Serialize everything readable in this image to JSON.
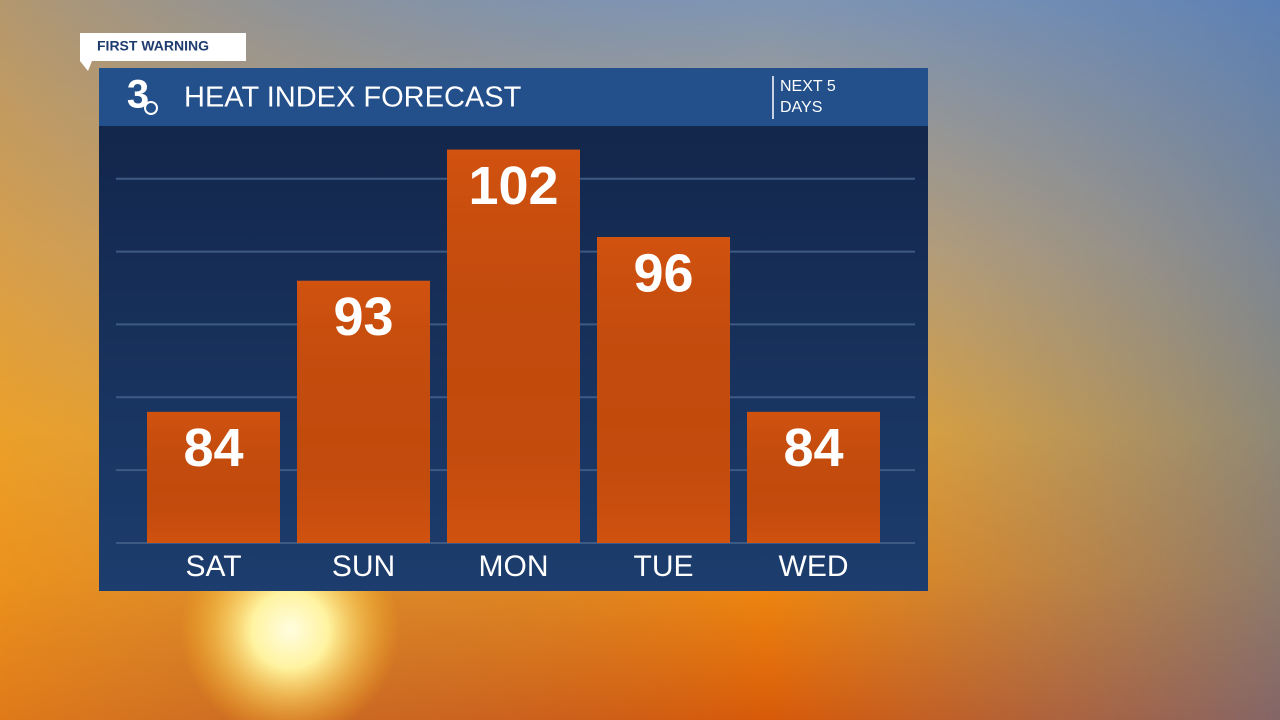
{
  "brand": "FIRST WARNING",
  "logo": "3",
  "chart_data": {
    "type": "bar",
    "title": "HEAT INDEX FORECAST",
    "subtitle": "NEXT 5 DAYS",
    "categories": [
      "SAT",
      "SUN",
      "MON",
      "TUE",
      "WED"
    ],
    "values": [
      84,
      93,
      102,
      96,
      84
    ],
    "color": "#d2520f",
    "ylim": [
      75,
      103
    ],
    "yticks": [
      75,
      80,
      85,
      90,
      95,
      100
    ],
    "grid": true
  }
}
